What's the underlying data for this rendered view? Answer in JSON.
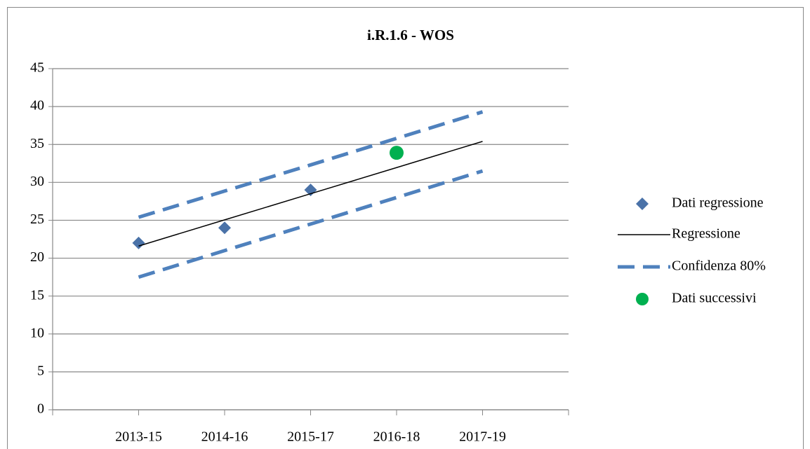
{
  "chart_data": {
    "type": "line",
    "title": "i.R.1.6 - WOS",
    "categories": [
      "2013-15",
      "2014-16",
      "2015-17",
      "2016-18",
      "2017-19"
    ],
    "series": [
      {
        "name": "Dati regressione",
        "color": "#4a72a8",
        "marker": "diamond",
        "values": [
          22,
          24,
          29,
          null,
          null
        ]
      },
      {
        "name": "Regressione",
        "color": "#000000",
        "marker": "line",
        "values": [
          21.6,
          25.05,
          28.5,
          31.95,
          35.4
        ]
      },
      {
        "name": "Confidenza 80%",
        "color": "#4f81bd",
        "marker": "dashed",
        "values": [
          25.4,
          28.85,
          32.3,
          35.8,
          39.3
        ],
        "lower": [
          17.5,
          21,
          24.5,
          28,
          31.5
        ]
      },
      {
        "name": "Dati successivi",
        "color": "#00b050",
        "marker": "circle",
        "values": [
          null,
          null,
          null,
          33.9,
          null
        ]
      }
    ],
    "ylim": [
      0,
      45
    ],
    "yticks": [
      0,
      5,
      10,
      15,
      20,
      25,
      30,
      35,
      40,
      45
    ],
    "grid": true,
    "legend": "right"
  }
}
